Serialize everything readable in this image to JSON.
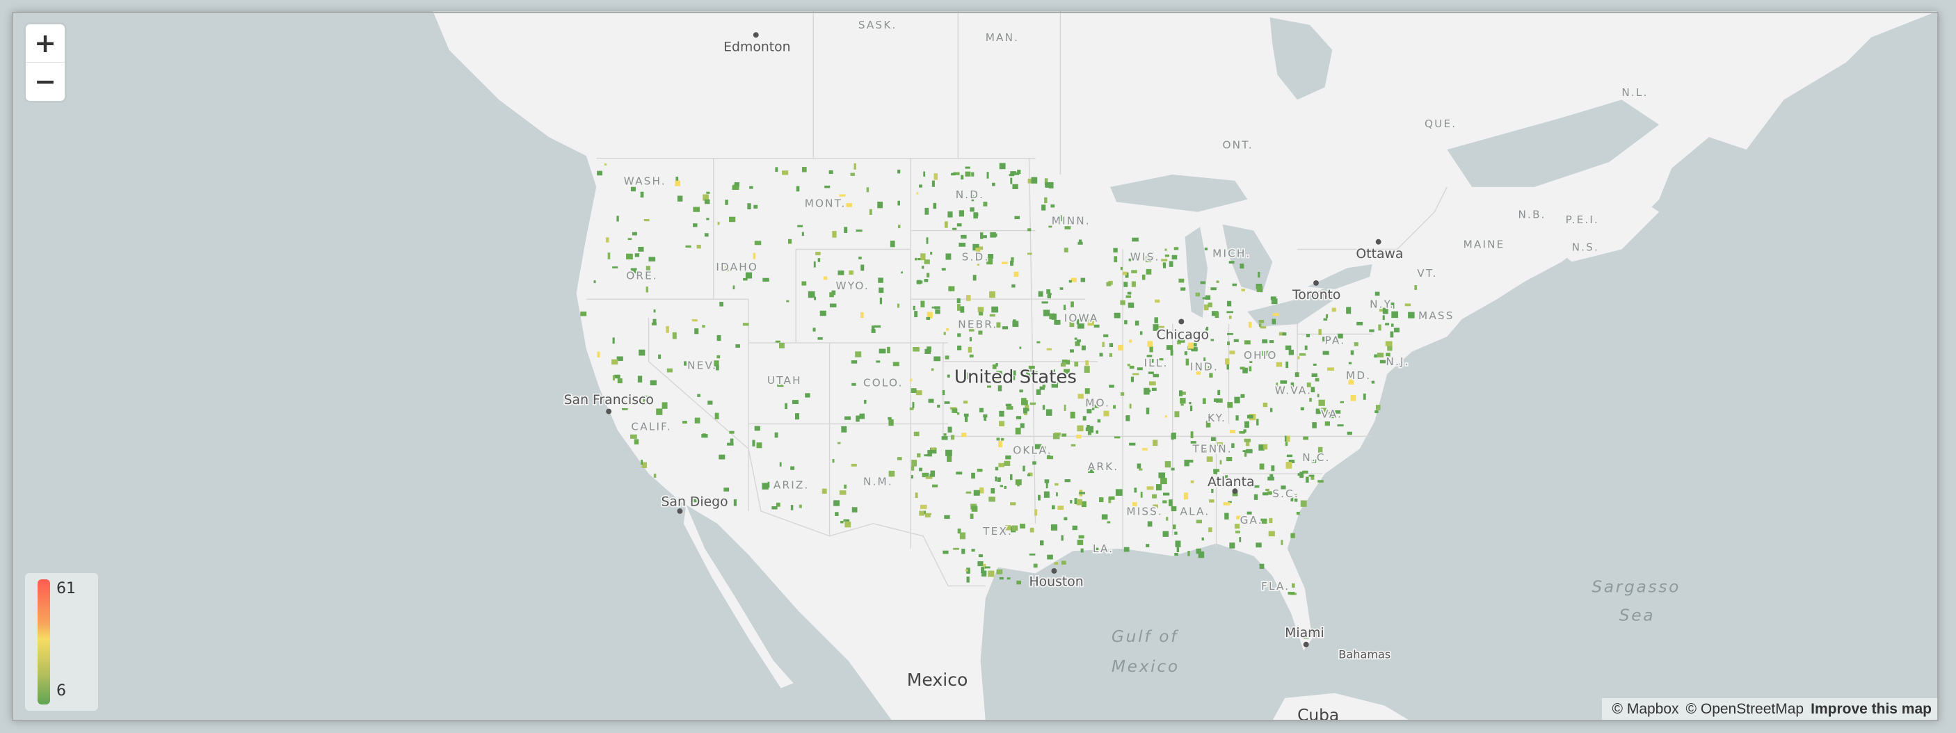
{
  "map": {
    "colors": {
      "water": "#c8d2d4",
      "land": "#f2f2f2",
      "border": "#d3d3d3",
      "low": "#5fa452",
      "mid": "#f6dc63",
      "high": "#ff5c50"
    },
    "labels": {
      "sask": "SASK.",
      "man": "MAN.",
      "nl": "N.L.",
      "que": "QUE.",
      "ont": "ONT.",
      "wash": "WASH.",
      "mont": "MONT.",
      "nd": "N.D.",
      "minn": "MINN.",
      "wis": "WIS.",
      "mich": "MICH.",
      "maine": "MAINE",
      "nb": "N.B.",
      "pei": "P.E.I.",
      "ns": "N.S.",
      "vt": "VT.",
      "mass": "MASS",
      "ny": "N.Y.",
      "ore": "ORE.",
      "idaho": "IDAHO",
      "sd": "S.D.",
      "wyo": "WYO.",
      "nebr": "NEBR.",
      "iowa": "IOWA",
      "pa": "PA.",
      "nj": "N.J.",
      "nev": "NEV.",
      "utah": "UTAH",
      "colo": "COLO.",
      "ill": "ILL.",
      "ind": "IND.",
      "ohio": "OHIO",
      "md": "MD.",
      "wva": "W.VA.",
      "va": "VA.",
      "ky": "KY.",
      "calif": "CALIF.",
      "mo": "MO.",
      "tenn": "TENN.",
      "nc": "N.C.",
      "okla": "OKLA.",
      "ark": "ARK.",
      "sc": "S.C.",
      "ariz": "ARIZ.",
      "nm": "N.M.",
      "miss": "MISS.",
      "ala": "ALA.",
      "ga": "GA.",
      "tex": "TEX.",
      "la": "LA.",
      "fla": "FLA."
    },
    "cities": {
      "edmonton": "Edmonton",
      "ottawa": "Ottawa",
      "toronto": "Toronto",
      "chicago": "Chicago",
      "sanfrancisco": "San Francisco",
      "sandiego": "San Diego",
      "atlanta": "Atlanta",
      "houston": "Houston",
      "miami": "Miami",
      "bahamas": "Bahamas"
    },
    "country": {
      "us": "United States",
      "mexico": "Mexico",
      "cuba": "Cuba"
    },
    "seas": {
      "gulf1": "Gulf of",
      "gulf2": "Mexico",
      "sargasso1": "Sargasso",
      "sargasso2": "Sea"
    }
  },
  "zoom": {
    "in_label": "+",
    "out_label": "−"
  },
  "legend": {
    "max": "61",
    "min": "6"
  },
  "attribution": {
    "mapbox": "© Mapbox",
    "osm": "© OpenStreetMap",
    "improve": "Improve this map"
  }
}
